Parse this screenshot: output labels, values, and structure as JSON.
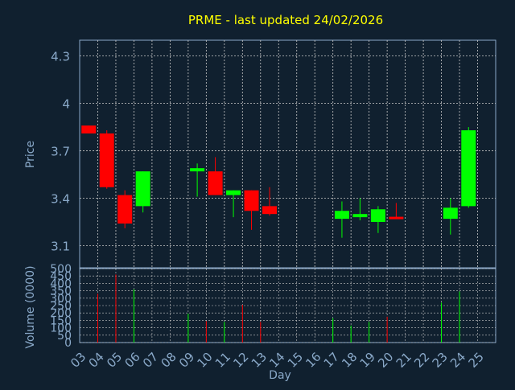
{
  "title": "PRME - last updated 24/02/2026",
  "colors": {
    "background": "#10202f",
    "title": "#ffff00",
    "axis_text": "#8aa9c9",
    "frame": "#8aa9c9",
    "grid": "#c8c8c8",
    "up": "#00ff00",
    "down": "#ff0000"
  },
  "chart_data": [
    {
      "type": "candlestick",
      "ylabel": "Price",
      "ylim": [
        2.96,
        4.4
      ],
      "yticks": [
        "4.3",
        "4",
        "3.7",
        "3.4",
        "3.1"
      ],
      "grid": true,
      "candles": [
        {
          "day": "03",
          "open": 3.86,
          "close": 3.81,
          "high": 3.86,
          "low": 3.81
        },
        {
          "day": "04",
          "open": 3.81,
          "close": 3.47,
          "high": 3.83,
          "low": 3.46
        },
        {
          "day": "05",
          "open": 3.42,
          "close": 3.24,
          "high": 3.45,
          "low": 3.21
        },
        {
          "day": "06",
          "open": 3.35,
          "close": 3.57,
          "high": 3.57,
          "low": 3.31
        },
        {
          "day": "09",
          "open": 3.57,
          "close": 3.59,
          "high": 3.62,
          "low": 3.41
        },
        {
          "day": "10",
          "open": 3.57,
          "close": 3.42,
          "high": 3.66,
          "low": 3.42
        },
        {
          "day": "11",
          "open": 3.42,
          "close": 3.45,
          "high": 3.45,
          "low": 3.28
        },
        {
          "day": "12",
          "open": 3.45,
          "close": 3.32,
          "high": 3.45,
          "low": 3.2
        },
        {
          "day": "13",
          "open": 3.35,
          "close": 3.3,
          "high": 3.47,
          "low": 3.29
        },
        {
          "day": "17",
          "open": 3.27,
          "close": 3.32,
          "high": 3.38,
          "low": 3.15
        },
        {
          "day": "18",
          "open": 3.28,
          "close": 3.3,
          "high": 3.4,
          "low": 3.26
        },
        {
          "day": "19",
          "open": 3.25,
          "close": 3.33,
          "high": 3.35,
          "low": 3.18
        },
        {
          "day": "20",
          "open": 3.28,
          "close": 3.27,
          "high": 3.37,
          "low": 3.27
        },
        {
          "day": "23",
          "open": 3.27,
          "close": 3.34,
          "high": 3.4,
          "low": 3.17
        },
        {
          "day": "24",
          "open": 3.35,
          "close": 3.83,
          "high": 3.85,
          "low": 3.34
        }
      ]
    },
    {
      "type": "bar",
      "xlabel": "Day",
      "ylabel": "Volume (0000)",
      "ylim": [
        0,
        500
      ],
      "yticks": [
        "500",
        "450",
        "400",
        "350",
        "300",
        "250",
        "200",
        "150",
        "100",
        "50",
        "0"
      ],
      "x_categories": [
        "03",
        "04",
        "05",
        "06",
        "07",
        "08",
        "09",
        "10",
        "11",
        "12",
        "13",
        "14",
        "15",
        "16",
        "17",
        "18",
        "19",
        "20",
        "21",
        "22",
        "23",
        "24",
        "25"
      ],
      "bars": [
        {
          "day": "04",
          "value": 330,
          "dir": "down"
        },
        {
          "day": "05",
          "value": 460,
          "dir": "down"
        },
        {
          "day": "06",
          "value": 360,
          "dir": "up"
        },
        {
          "day": "09",
          "value": 195,
          "dir": "up"
        },
        {
          "day": "10",
          "value": 145,
          "dir": "down"
        },
        {
          "day": "11",
          "value": 140,
          "dir": "up"
        },
        {
          "day": "12",
          "value": 255,
          "dir": "down"
        },
        {
          "day": "13",
          "value": 140,
          "dir": "down"
        },
        {
          "day": "17",
          "value": 165,
          "dir": "up"
        },
        {
          "day": "18",
          "value": 115,
          "dir": "up"
        },
        {
          "day": "19",
          "value": 140,
          "dir": "up"
        },
        {
          "day": "20",
          "value": 175,
          "dir": "down"
        },
        {
          "day": "23",
          "value": 270,
          "dir": "up"
        },
        {
          "day": "24",
          "value": 345,
          "dir": "up"
        }
      ]
    }
  ]
}
